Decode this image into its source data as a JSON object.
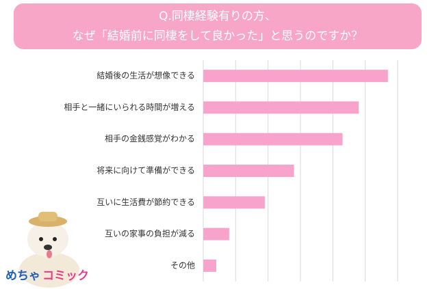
{
  "chart_data": {
    "type": "bar",
    "orientation": "horizontal",
    "title": [
      "Q.同棲経験有りの方、",
      "なぜ「結婚前に同棲をして良かった」と思うのですか？"
    ],
    "categories": [
      "結婚後の生活が想像できる",
      "相手と一緒にいられる時間が増える",
      "相手の金銭感覚がわかる",
      "将来に向けて準備ができる",
      "互いに生活費が節約できる",
      "互いの家事の負担が減る",
      "その他"
    ],
    "values": [
      57,
      48,
      43,
      28,
      19,
      8,
      4
    ],
    "color": "#f7a3cb",
    "xlim": [
      0,
      60
    ],
    "xticks": [
      0,
      10,
      20,
      30,
      40,
      50,
      60
    ],
    "grid": true
  },
  "logo": {
    "left": "めちゃ",
    "right": "コミック"
  }
}
